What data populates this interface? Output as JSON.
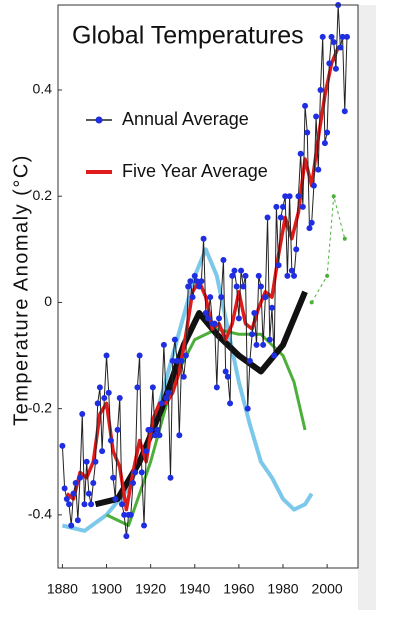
{
  "chart_data": {
    "type": "line",
    "title": "Global Temperatures",
    "y_label": "Temperature Anomaly (°C)",
    "xlim": [
      1878,
      2014
    ],
    "ylim": [
      -0.5,
      0.56
    ],
    "xticks": [
      1880,
      1900,
      1920,
      1940,
      1960,
      1980,
      2000
    ],
    "yticks": [
      -0.4,
      -0.2,
      0,
      0.2,
      0.4
    ],
    "legend": "upper left",
    "series": [
      {
        "color": "#7cc8ea",
        "width": 4,
        "x": [
          1880,
          1890,
          1900,
          1910,
          1920,
          1930,
          1940,
          1945,
          1950,
          1955,
          1960,
          1965,
          1970,
          1975,
          1980,
          1985,
          1990,
          1993
        ],
        "values": [
          -0.42,
          -0.43,
          -0.4,
          -0.35,
          -0.25,
          -0.1,
          0.05,
          0.1,
          0.05,
          -0.05,
          -0.15,
          -0.23,
          -0.3,
          -0.33,
          -0.37,
          -0.39,
          -0.38,
          -0.36
        ]
      },
      {
        "color": "#4caf3a",
        "width": 3,
        "x": [
          1900,
          1910,
          1920,
          1930,
          1940,
          1950,
          1960,
          1970,
          1980,
          1985,
          1990
        ],
        "values": [
          -0.4,
          -0.42,
          -0.3,
          -0.15,
          -0.07,
          -0.05,
          -0.06,
          -0.06,
          -0.1,
          -0.15,
          -0.24
        ]
      },
      {
        "color": "#111111",
        "width": 6,
        "x": [
          1895,
          1905,
          1915,
          1925,
          1935,
          1942,
          1950,
          1960,
          1970,
          1980,
          1985,
          1990
        ],
        "values": [
          -0.38,
          -0.37,
          -0.3,
          -0.2,
          -0.08,
          -0.02,
          -0.06,
          -0.1,
          -0.13,
          -0.08,
          -0.03,
          0.02
        ]
      },
      {
        "color": "#4caf3a",
        "width": 1,
        "dashed": true,
        "marker": true,
        "x": [
          1993,
          2000,
          2003,
          2008
        ],
        "values": [
          0.0,
          0.05,
          0.2,
          0.12
        ]
      },
      {
        "name": "Five Year Average",
        "color": "#e01b1b",
        "width": 3.5,
        "x": [
          1882,
          1885,
          1888,
          1891,
          1894,
          1897,
          1900,
          1903,
          1906,
          1909,
          1912,
          1915,
          1918,
          1921,
          1924,
          1927,
          1930,
          1933,
          1936,
          1939,
          1942,
          1945,
          1948,
          1951,
          1954,
          1957,
          1960,
          1963,
          1966,
          1969,
          1972,
          1975,
          1978,
          1981,
          1984,
          1987,
          1990,
          1993,
          1996,
          1999,
          2002,
          2005,
          2007
        ],
        "values": [
          -0.36,
          -0.37,
          -0.32,
          -0.33,
          -0.3,
          -0.21,
          -0.19,
          -0.28,
          -0.31,
          -0.39,
          -0.32,
          -0.26,
          -0.3,
          -0.22,
          -0.19,
          -0.19,
          -0.17,
          -0.13,
          -0.06,
          0.02,
          0.04,
          0.01,
          -0.05,
          -0.04,
          -0.07,
          -0.04,
          0.02,
          -0.04,
          -0.05,
          -0.01,
          0.02,
          0.01,
          0.09,
          0.16,
          0.12,
          0.17,
          0.27,
          0.22,
          0.31,
          0.39,
          0.45,
          0.48,
          0.48
        ]
      },
      {
        "name": "Annual Average",
        "color": "#1f2ee0",
        "line_color": "#222222",
        "width": 1,
        "marker": true,
        "x": [
          1880,
          1881,
          1882,
          1883,
          1884,
          1885,
          1886,
          1887,
          1888,
          1889,
          1890,
          1891,
          1892,
          1893,
          1894,
          1895,
          1896,
          1897,
          1898,
          1899,
          1900,
          1901,
          1902,
          1903,
          1904,
          1905,
          1906,
          1907,
          1908,
          1909,
          1910,
          1911,
          1912,
          1913,
          1914,
          1915,
          1916,
          1917,
          1918,
          1919,
          1920,
          1921,
          1922,
          1923,
          1924,
          1925,
          1926,
          1927,
          1928,
          1929,
          1930,
          1931,
          1932,
          1933,
          1934,
          1935,
          1936,
          1937,
          1938,
          1939,
          1940,
          1941,
          1942,
          1943,
          1944,
          1945,
          1946,
          1947,
          1948,
          1949,
          1950,
          1951,
          1952,
          1953,
          1954,
          1955,
          1956,
          1957,
          1958,
          1959,
          1960,
          1961,
          1962,
          1963,
          1964,
          1965,
          1966,
          1967,
          1968,
          1969,
          1970,
          1971,
          1972,
          1973,
          1974,
          1975,
          1976,
          1977,
          1978,
          1979,
          1980,
          1981,
          1982,
          1983,
          1984,
          1985,
          1986,
          1987,
          1988,
          1989,
          1990,
          1991,
          1992,
          1993,
          1994,
          1995,
          1996,
          1997,
          1998,
          1999,
          2000,
          2001,
          2002,
          2003,
          2004,
          2005,
          2006,
          2007,
          2008,
          2009
        ],
        "values": [
          -0.27,
          -0.35,
          -0.37,
          -0.38,
          -0.42,
          -0.36,
          -0.34,
          -0.41,
          -0.33,
          -0.21,
          -0.38,
          -0.3,
          -0.36,
          -0.38,
          -0.34,
          -0.3,
          -0.19,
          -0.16,
          -0.28,
          -0.18,
          -0.1,
          -0.17,
          -0.26,
          -0.33,
          -0.37,
          -0.24,
          -0.18,
          -0.38,
          -0.4,
          -0.44,
          -0.4,
          -0.4,
          -0.34,
          -0.32,
          -0.16,
          -0.1,
          -0.32,
          -0.42,
          -0.28,
          -0.24,
          -0.24,
          -0.16,
          -0.25,
          -0.24,
          -0.25,
          -0.19,
          -0.08,
          -0.18,
          -0.17,
          -0.33,
          -0.11,
          -0.07,
          -0.11,
          -0.25,
          -0.11,
          -0.14,
          -0.1,
          0.03,
          0.04,
          0.01,
          0.05,
          0.04,
          0.03,
          0.04,
          0.12,
          -0.02,
          -0.03,
          0.01,
          -0.04,
          -0.04,
          -0.16,
          -0.03,
          0.01,
          0.08,
          -0.13,
          -0.14,
          -0.19,
          0.05,
          0.06,
          0.03,
          -0.03,
          0.06,
          0.03,
          0.05,
          -0.2,
          -0.11,
          -0.06,
          -0.02,
          -0.08,
          0.05,
          0.03,
          -0.08,
          0.01,
          0.16,
          -0.07,
          -0.01,
          -0.1,
          0.18,
          0.07,
          0.16,
          0.18,
          0.2,
          0.05,
          0.2,
          0.06,
          0.05,
          0.1,
          0.2,
          0.28,
          0.18,
          0.37,
          0.32,
          0.14,
          0.15,
          0.22,
          0.35,
          0.25,
          0.4,
          0.5,
          0.3,
          0.32,
          0.45,
          0.5,
          0.49,
          0.44,
          0.56,
          0.48,
          0.5,
          0.36,
          0.5
        ]
      }
    ]
  }
}
